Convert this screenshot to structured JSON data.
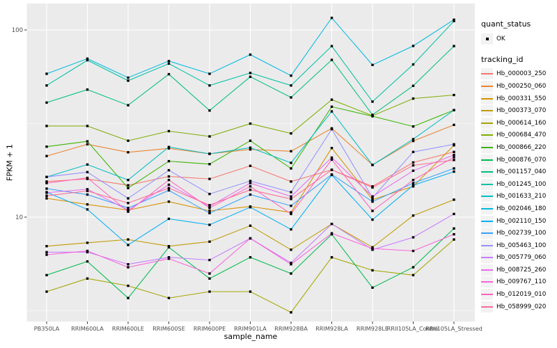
{
  "chart": {
    "panel_bg": "#EBEBEB",
    "grid_color": "#FFFFFF",
    "point_color": "#000000",
    "axis_text_color": "#4D4D4D",
    "tick_color": "#333333",
    "y_axis": {
      "label": "FPKM + 1",
      "tick_labels": [
        "100",
        "10"
      ],
      "tick_values": [
        100,
        10
      ]
    },
    "x_axis": {
      "label": "sample_name"
    },
    "legend": {
      "quant_status_title": "quant_status",
      "ok_label": "OK",
      "tracking_id_title": "tracking_id"
    }
  },
  "chart_data": {
    "type": "line",
    "title": "",
    "xlabel": "sample_name",
    "ylabel": "FPKM + 1",
    "y_scale": "log10",
    "ylim": [
      2.8,
      137
    ],
    "y_major_gridlines": [
      10,
      100
    ],
    "y_minor_gridlines": [
      3.162,
      31.623
    ],
    "grid": true,
    "legend_position": "right",
    "quant_status": "OK",
    "categories": [
      "PB350LA",
      "RRIM600LA",
      "RRIM600LE",
      "RRIM600SE",
      "RRIM600PE",
      "RRIM901LA",
      "RRIM928BA",
      "RRIM928LA",
      "RRIM928LE",
      "RRII105LA_Control",
      "RRII105LA_Stressed"
    ],
    "series": [
      {
        "name": "Hb_000003_250",
        "color": "#F8766D",
        "values": [
          15.5,
          16.0,
          14.8,
          16.5,
          16.0,
          18.8,
          15.5,
          17.9,
          14.6,
          19.6,
          22.3
        ]
      },
      {
        "name": "Hb_000250_060",
        "color": "#EA8331",
        "values": [
          21.2,
          24.5,
          22.2,
          23.3,
          21.8,
          23.0,
          22.5,
          29.8,
          19.0,
          25.5,
          31.1
        ]
      },
      {
        "name": "Hb_000331_550",
        "color": "#D89000",
        "values": [
          12.6,
          11.7,
          10.9,
          12.1,
          10.8,
          11.4,
          10.6,
          23.4,
          12.4,
          14.6,
          24.2
        ]
      },
      {
        "name": "Hb_000373_070",
        "color": "#C09B00",
        "values": [
          7.0,
          7.3,
          7.6,
          7.0,
          7.4,
          9.0,
          6.7,
          9.2,
          6.9,
          10.2,
          12.4
        ]
      },
      {
        "name": "Hb_000614_160",
        "color": "#A3A500",
        "values": [
          4.0,
          4.7,
          4.3,
          3.7,
          4.0,
          4.0,
          3.1,
          6.1,
          5.2,
          4.9,
          7.6
        ]
      },
      {
        "name": "Hb_000684_470",
        "color": "#7CAE00",
        "values": [
          30.7,
          30.7,
          25.6,
          28.8,
          27.0,
          31.6,
          28.0,
          42.4,
          34.8,
          43.0,
          44.9
        ]
      },
      {
        "name": "Hb_000866_220",
        "color": "#39B600",
        "values": [
          23.8,
          25.4,
          14.3,
          19.9,
          19.2,
          25.6,
          18.2,
          38.9,
          34.6,
          30.5,
          37.3
        ]
      },
      {
        "name": "Hb_000876_070",
        "color": "#00BB4E",
        "values": [
          4.9,
          5.8,
          3.7,
          6.9,
          4.7,
          6.1,
          5.0,
          8.1,
          4.2,
          5.4,
          8.7
        ]
      },
      {
        "name": "Hb_001157_040",
        "color": "#00BF7D",
        "values": [
          40.9,
          48.0,
          39.6,
          58.0,
          37.1,
          56.2,
          43.6,
          69.2,
          35.2,
          50.3,
          82.0
        ]
      },
      {
        "name": "Hb_001245_100",
        "color": "#00C1A3",
        "values": [
          50.5,
          68.9,
          53.6,
          66.1,
          50.5,
          58.9,
          50.5,
          81.9,
          41.4,
          65.4,
          111.5
        ]
      },
      {
        "name": "Hb_001633_210",
        "color": "#00BFC4",
        "values": [
          16.4,
          19.1,
          15.8,
          23.7,
          21.8,
          23.5,
          19.5,
          36.7,
          19.0,
          26.1,
          37.3
        ]
      },
      {
        "name": "Hb_002046_180",
        "color": "#00BAE0",
        "values": [
          58.3,
          70.2,
          55.6,
          68.2,
          58.3,
          73.8,
          57.0,
          116.0,
          65.0,
          82.1,
          113.4
        ]
      },
      {
        "name": "Hb_002110_150",
        "color": "#00B0F6",
        "values": [
          13.6,
          11.0,
          7.1,
          9.8,
          9.1,
          11.3,
          8.6,
          16.8,
          9.7,
          14.8,
          17.5
        ]
      },
      {
        "name": "Hb_002739_100",
        "color": "#35A2FF",
        "values": [
          14.2,
          13.2,
          11.2,
          13.9,
          10.5,
          13.2,
          11.5,
          16.9,
          12.1,
          15.2,
          18.2
        ]
      },
      {
        "name": "Hb_005463_100",
        "color": "#9590FF",
        "values": [
          16.4,
          17.4,
          12.6,
          17.8,
          13.3,
          15.6,
          13.6,
          29.5,
          12.7,
          22.3,
          24.5
        ]
      },
      {
        "name": "Hb_005779_060",
        "color": "#C77CFF",
        "values": [
          6.5,
          6.5,
          5.6,
          6.1,
          5.9,
          7.7,
          5.7,
          9.2,
          6.7,
          7.8,
          10.4
        ]
      },
      {
        "name": "Hb_008725_260",
        "color": "#E76BF3",
        "values": [
          13.5,
          14.1,
          10.9,
          14.9,
          11.4,
          15.2,
          12.9,
          20.8,
          12.9,
          17.7,
          21.5
        ]
      },
      {
        "name": "Hb_009767_110",
        "color": "#FA62DB",
        "values": [
          6.3,
          6.6,
          5.4,
          6.0,
          5.0,
          7.7,
          5.6,
          8.2,
          6.8,
          6.6,
          8.1
        ]
      },
      {
        "name": "Hb_012019_010",
        "color": "#FF62BC",
        "values": [
          15.2,
          16.2,
          10.7,
          15.8,
          11.2,
          14.6,
          10.4,
          20.3,
          10.8,
          15.8,
          20.9
        ]
      },
      {
        "name": "Hb_058999_020",
        "color": "#FF6A98",
        "values": [
          13.0,
          13.8,
          11.9,
          14.3,
          11.6,
          14.0,
          12.5,
          17.9,
          14.4,
          18.9,
          20.2
        ]
      }
    ]
  }
}
